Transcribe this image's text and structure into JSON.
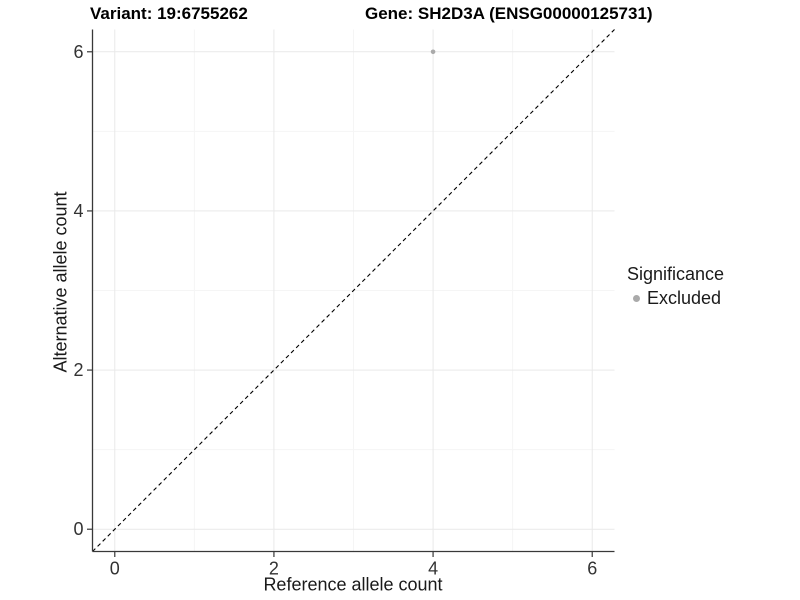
{
  "header": {
    "variant_title": "Variant: 19:6755262",
    "gene_title": "Gene: SH2D3A (ENSG00000125731)"
  },
  "axes": {
    "x_title": "Reference allele count",
    "y_title": "Alternative allele count"
  },
  "legend": {
    "title": "Significance",
    "position": "right",
    "items": [
      {
        "label": "Excluded",
        "color": "#aaaaaa"
      }
    ]
  },
  "colors": {
    "background": "#ffffff",
    "title_text": "#000000",
    "axis_text": "#333333",
    "axis_line": "#383838",
    "grid_major": "#e9e9e9",
    "grid_minor": "#f5f5f5",
    "point": "#aaaaaa",
    "identity_line": "#000000"
  },
  "chart_data": {
    "type": "scatter",
    "title": "Variant: 19:6755262    Gene: SH2D3A (ENSG00000125731)",
    "xlabel": "Reference allele count",
    "ylabel": "Alternative allele count",
    "xlim": [
      -0.28,
      6.28
    ],
    "ylim": [
      -0.28,
      6.28
    ],
    "x_ticks": [
      0,
      2,
      4,
      6
    ],
    "y_ticks": [
      0,
      2,
      4,
      6
    ],
    "minor_gridlines": [
      1,
      3,
      5
    ],
    "grid": "on",
    "legend_position": "right",
    "series": [
      {
        "name": "Excluded",
        "color": "#aaaaaa",
        "points": [
          [
            4,
            6
          ]
        ]
      }
    ],
    "reference_line": {
      "type": "identity y=x",
      "style": "dashed",
      "color": "#000000",
      "from": [
        -0.28,
        -0.28
      ],
      "to": [
        6.28,
        6.28
      ]
    }
  }
}
